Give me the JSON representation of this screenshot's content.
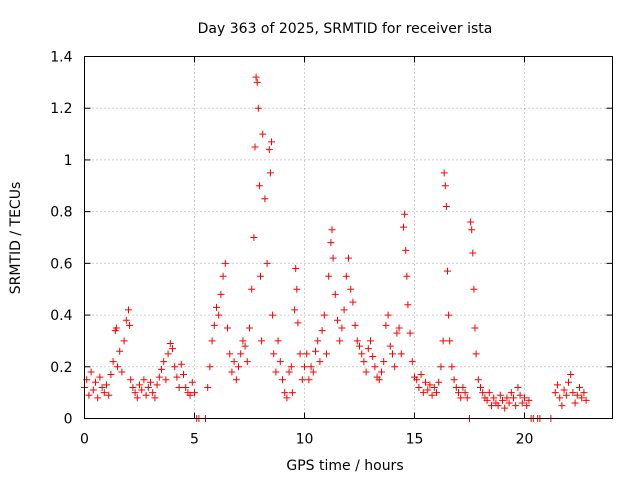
{
  "chart_data": {
    "type": "scatter",
    "title": "Day 363 of 2025, SRMTID for receiver ista",
    "xlabel": "GPS time / hours",
    "ylabel": "SRMTID / TECUs",
    "xlim": [
      0,
      24
    ],
    "ylim": [
      0,
      1.4
    ],
    "xticks": [
      0,
      5,
      10,
      15,
      20
    ],
    "xtick_labels": [
      "0",
      "5",
      "10",
      "15",
      "20"
    ],
    "yticks": [
      0,
      0.2,
      0.4,
      0.6,
      0.8,
      1.0,
      1.2,
      1.4
    ],
    "ytick_labels": [
      "0",
      "0.2",
      "0.4",
      "0.6",
      "0.8",
      "1",
      "1.2",
      "1.4"
    ],
    "grid": true,
    "marker": "+",
    "color": "#ff0000",
    "series": [
      {
        "name": "SRMTID",
        "points": [
          [
            0.0,
            0.12
          ],
          [
            0.1,
            0.15
          ],
          [
            0.2,
            0.09
          ],
          [
            0.3,
            0.18
          ],
          [
            0.4,
            0.11
          ],
          [
            0.5,
            0.14
          ],
          [
            0.6,
            0.08
          ],
          [
            0.7,
            0.16
          ],
          [
            0.8,
            0.12
          ],
          [
            0.9,
            0.1
          ],
          [
            1.0,
            0.13
          ],
          [
            1.1,
            0.09
          ],
          [
            1.2,
            0.17
          ],
          [
            1.3,
            0.22
          ],
          [
            1.4,
            0.34
          ],
          [
            1.45,
            0.35
          ],
          [
            1.5,
            0.2
          ],
          [
            1.6,
            0.26
          ],
          [
            1.7,
            0.18
          ],
          [
            1.8,
            0.3
          ],
          [
            1.9,
            0.38
          ],
          [
            2.0,
            0.42
          ],
          [
            2.05,
            0.36
          ],
          [
            2.1,
            0.15
          ],
          [
            2.2,
            0.12
          ],
          [
            2.3,
            0.1
          ],
          [
            2.4,
            0.08
          ],
          [
            2.5,
            0.13
          ],
          [
            2.6,
            0.11
          ],
          [
            2.7,
            0.15
          ],
          [
            2.8,
            0.09
          ],
          [
            2.9,
            0.12
          ],
          [
            3.0,
            0.14
          ],
          [
            3.1,
            0.1
          ],
          [
            3.2,
            0.08
          ],
          [
            3.3,
            0.13
          ],
          [
            3.4,
            0.16
          ],
          [
            3.5,
            0.19
          ],
          [
            3.6,
            0.22
          ],
          [
            3.7,
            0.15
          ],
          [
            3.8,
            0.25
          ],
          [
            3.9,
            0.29
          ],
          [
            4.0,
            0.27
          ],
          [
            4.1,
            0.2
          ],
          [
            4.2,
            0.16
          ],
          [
            4.3,
            0.12
          ],
          [
            4.4,
            0.21
          ],
          [
            4.5,
            0.17
          ],
          [
            4.6,
            0.12
          ],
          [
            4.7,
            0.1
          ],
          [
            4.8,
            0.09
          ],
          [
            4.9,
            0.14
          ],
          [
            5.0,
            0.1
          ],
          [
            5.1,
            0.0
          ],
          [
            5.2,
            0.0
          ],
          [
            5.5,
            0.0
          ],
          [
            5.6,
            0.12
          ],
          [
            5.7,
            0.2
          ],
          [
            5.8,
            0.3
          ],
          [
            5.9,
            0.36
          ],
          [
            6.0,
            0.43
          ],
          [
            6.1,
            0.4
          ],
          [
            6.2,
            0.48
          ],
          [
            6.3,
            0.55
          ],
          [
            6.4,
            0.6
          ],
          [
            6.5,
            0.35
          ],
          [
            6.6,
            0.25
          ],
          [
            6.7,
            0.18
          ],
          [
            6.8,
            0.22
          ],
          [
            6.9,
            0.15
          ],
          [
            7.0,
            0.2
          ],
          [
            7.1,
            0.25
          ],
          [
            7.2,
            0.3
          ],
          [
            7.3,
            0.28
          ],
          [
            7.4,
            0.22
          ],
          [
            7.5,
            0.35
          ],
          [
            7.6,
            0.5
          ],
          [
            7.7,
            0.7
          ],
          [
            7.75,
            1.05
          ],
          [
            7.8,
            1.32
          ],
          [
            7.85,
            1.3
          ],
          [
            7.9,
            1.2
          ],
          [
            7.95,
            0.9
          ],
          [
            8.0,
            0.55
          ],
          [
            8.05,
            0.3
          ],
          [
            8.1,
            1.1
          ],
          [
            8.2,
            0.85
          ],
          [
            8.3,
            0.6
          ],
          [
            8.4,
            1.04
          ],
          [
            8.45,
            0.95
          ],
          [
            8.5,
            1.07
          ],
          [
            8.55,
            0.4
          ],
          [
            8.6,
            0.25
          ],
          [
            8.7,
            0.18
          ],
          [
            8.8,
            0.3
          ],
          [
            8.9,
            0.22
          ],
          [
            9.0,
            0.15
          ],
          [
            9.1,
            0.1
          ],
          [
            9.2,
            0.08
          ],
          [
            9.3,
            0.18
          ],
          [
            9.4,
            0.2
          ],
          [
            9.45,
            0.1
          ],
          [
            9.55,
            0.42
          ],
          [
            9.6,
            0.58
          ],
          [
            9.65,
            0.5
          ],
          [
            9.7,
            0.37
          ],
          [
            9.8,
            0.25
          ],
          [
            9.9,
            0.15
          ],
          [
            10.0,
            0.2
          ],
          [
            10.1,
            0.25
          ],
          [
            10.2,
            0.15
          ],
          [
            10.3,
            0.2
          ],
          [
            10.4,
            0.18
          ],
          [
            10.5,
            0.26
          ],
          [
            10.6,
            0.3
          ],
          [
            10.7,
            0.22
          ],
          [
            10.8,
            0.34
          ],
          [
            10.9,
            0.4
          ],
          [
            11.0,
            0.25
          ],
          [
            11.1,
            0.55
          ],
          [
            11.2,
            0.68
          ],
          [
            11.25,
            0.73
          ],
          [
            11.3,
            0.62
          ],
          [
            11.4,
            0.48
          ],
          [
            11.5,
            0.38
          ],
          [
            11.6,
            0.3
          ],
          [
            11.7,
            0.35
          ],
          [
            11.8,
            0.42
          ],
          [
            11.9,
            0.55
          ],
          [
            12.0,
            0.62
          ],
          [
            12.1,
            0.5
          ],
          [
            12.2,
            0.45
          ],
          [
            12.3,
            0.36
          ],
          [
            12.4,
            0.3
          ],
          [
            12.5,
            0.28
          ],
          [
            12.6,
            0.25
          ],
          [
            12.7,
            0.22
          ],
          [
            12.8,
            0.18
          ],
          [
            12.9,
            0.27
          ],
          [
            13.0,
            0.3
          ],
          [
            13.1,
            0.24
          ],
          [
            13.2,
            0.2
          ],
          [
            13.3,
            0.16
          ],
          [
            13.4,
            0.15
          ],
          [
            13.5,
            0.18
          ],
          [
            13.6,
            0.22
          ],
          [
            13.7,
            0.36
          ],
          [
            13.8,
            0.4
          ],
          [
            13.9,
            0.28
          ],
          [
            14.0,
            0.25
          ],
          [
            14.1,
            0.2
          ],
          [
            14.2,
            0.33
          ],
          [
            14.3,
            0.35
          ],
          [
            14.4,
            0.25
          ],
          [
            14.5,
            0.74
          ],
          [
            14.55,
            0.79
          ],
          [
            14.6,
            0.65
          ],
          [
            14.65,
            0.55
          ],
          [
            14.7,
            0.44
          ],
          [
            14.8,
            0.33
          ],
          [
            14.9,
            0.22
          ],
          [
            15.0,
            0.16
          ],
          [
            15.1,
            0.15
          ],
          [
            15.2,
            0.12
          ],
          [
            15.3,
            0.17
          ],
          [
            15.4,
            0.1
          ],
          [
            15.5,
            0.14
          ],
          [
            15.6,
            0.11
          ],
          [
            15.7,
            0.13
          ],
          [
            15.8,
            0.09
          ],
          [
            15.9,
            0.12
          ],
          [
            16.0,
            0.1
          ],
          [
            16.1,
            0.14
          ],
          [
            16.2,
            0.2
          ],
          [
            16.3,
            0.3
          ],
          [
            16.35,
            0.95
          ],
          [
            16.4,
            0.9
          ],
          [
            16.45,
            0.82
          ],
          [
            16.5,
            0.57
          ],
          [
            16.55,
            0.4
          ],
          [
            16.6,
            0.3
          ],
          [
            16.7,
            0.2
          ],
          [
            16.8,
            0.15
          ],
          [
            16.9,
            0.12
          ],
          [
            17.0,
            0.1
          ],
          [
            17.1,
            0.08
          ],
          [
            17.2,
            0.12
          ],
          [
            17.3,
            0.1
          ],
          [
            17.4,
            0.08
          ],
          [
            17.5,
            0.0
          ],
          [
            17.55,
            0.76
          ],
          [
            17.6,
            0.73
          ],
          [
            17.65,
            0.64
          ],
          [
            17.7,
            0.5
          ],
          [
            17.75,
            0.35
          ],
          [
            17.8,
            0.25
          ],
          [
            17.9,
            0.15
          ],
          [
            18.0,
            0.12
          ],
          [
            18.1,
            0.1
          ],
          [
            18.2,
            0.08
          ],
          [
            18.3,
            0.07
          ],
          [
            18.4,
            0.1
          ],
          [
            18.5,
            0.05
          ],
          [
            18.6,
            0.08
          ],
          [
            18.7,
            0.06
          ],
          [
            18.8,
            0.05
          ],
          [
            18.9,
            0.09
          ],
          [
            19.0,
            0.07
          ],
          [
            19.1,
            0.04
          ],
          [
            19.2,
            0.08
          ],
          [
            19.3,
            0.06
          ],
          [
            19.4,
            0.1
          ],
          [
            19.5,
            0.08
          ],
          [
            19.6,
            0.05
          ],
          [
            19.7,
            0.12
          ],
          [
            19.8,
            0.09
          ],
          [
            19.9,
            0.06
          ],
          [
            20.0,
            0.08
          ],
          [
            20.1,
            0.05
          ],
          [
            20.2,
            0.07
          ],
          [
            20.3,
            0.0
          ],
          [
            20.4,
            0.0
          ],
          [
            20.6,
            0.0
          ],
          [
            20.7,
            0.0
          ],
          [
            21.2,
            0.0
          ],
          [
            21.4,
            0.1
          ],
          [
            21.5,
            0.13
          ],
          [
            21.6,
            0.08
          ],
          [
            21.7,
            0.05
          ],
          [
            21.8,
            0.11
          ],
          [
            21.9,
            0.09
          ],
          [
            22.0,
            0.14
          ],
          [
            22.1,
            0.17
          ],
          [
            22.2,
            0.1
          ],
          [
            22.3,
            0.06
          ],
          [
            22.4,
            0.09
          ],
          [
            22.5,
            0.12
          ],
          [
            22.6,
            0.08
          ],
          [
            22.7,
            0.1
          ],
          [
            22.8,
            0.07
          ]
        ]
      }
    ]
  }
}
